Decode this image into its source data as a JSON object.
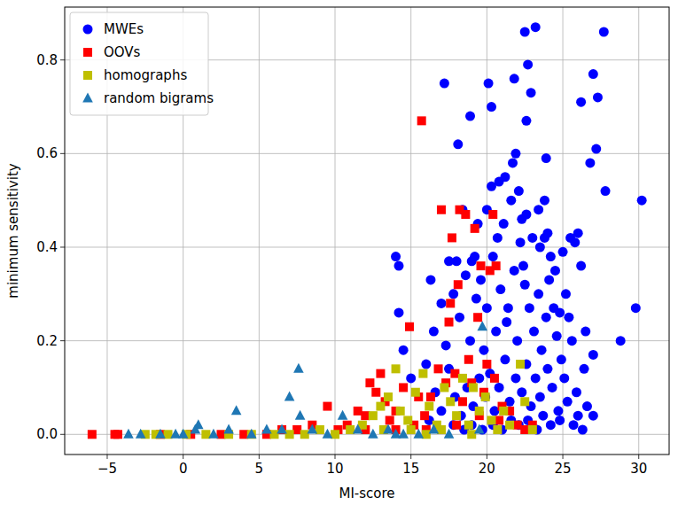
{
  "chart_data": {
    "type": "scatter",
    "x_label": "MI-score",
    "y_label": "minimum sensitivity",
    "xlim": [
      -7.8,
      32.0
    ],
    "ylim": [
      -0.043,
      0.913
    ],
    "xticks": [
      {
        "value": -5,
        "label": "−5"
      },
      0,
      5,
      10,
      15,
      20,
      25,
      30
    ],
    "yticks": [
      {
        "value": 0,
        "label": "0.0"
      },
      {
        "value": 0.2,
        "label": "0.2"
      },
      {
        "value": 0.4,
        "label": "0.4"
      },
      {
        "value": 0.6,
        "label": "0.6"
      },
      {
        "value": 0.8,
        "label": "0.8"
      }
    ],
    "grid": true,
    "legend": "upper left",
    "series": [
      {
        "name": "MWEs",
        "color": "#0000ff",
        "marker": "circle",
        "x": [
          22.5,
          23.2,
          27.7,
          22.7,
          21.8,
          27.0,
          17.2,
          20.1,
          22.9,
          20.3,
          26.2,
          27.3,
          18.9,
          22.6,
          27.2,
          18.1,
          26.8,
          21.9,
          27.8,
          23.9,
          30.2,
          14.0,
          14.2,
          16.3,
          17.5,
          18.0,
          19.2,
          20.3,
          20.8,
          21.2,
          21.7,
          21.6,
          22.1,
          22.3,
          22.6,
          23.0,
          23.5,
          23.8,
          24.0,
          24.2,
          23.8,
          25.5,
          26.0,
          25.8,
          25.2,
          25.4,
          26.5,
          29.8,
          28.8,
          27.0,
          26.6,
          27.0,
          26.0,
          14.2,
          14.5,
          15.0,
          16.0,
          16.5,
          17.0,
          17.8,
          18.2,
          18.6,
          18.9,
          19.3,
          19.6,
          19.8,
          20.0,
          20.4,
          20.6,
          20.9,
          21.1,
          21.4,
          21.8,
          22.0,
          22.2,
          22.5,
          22.8,
          23.1,
          23.4,
          23.6,
          23.9,
          24.1,
          24.4,
          24.6,
          24.9,
          25.1,
          24.3,
          24.0,
          23.5,
          23.2,
          22.9,
          22.6,
          22.3,
          21.9,
          21.5,
          21.2,
          20.8,
          20.5,
          20.2,
          19.9,
          19.5,
          19.1,
          18.7,
          18.3,
          17.9,
          17.5,
          17.0,
          16.6,
          16.2,
          24.7,
          25.3,
          25.7,
          26.3,
          25.9,
          24.8,
          24.2,
          23.7,
          23.3,
          22.7,
          22.1,
          21.6,
          21.0,
          20.4,
          19.7,
          19.0,
          18.5,
          17.8,
          21.3,
          22.4,
          20.7,
          19.4,
          18.4,
          20.0,
          23.4,
          24.5,
          26.2,
          25.6,
          24.8,
          26.4,
          25.0,
          19.0,
          17.3
        ],
        "values": [
          0.86,
          0.87,
          0.86,
          0.79,
          0.76,
          0.77,
          0.75,
          0.75,
          0.73,
          0.7,
          0.71,
          0.72,
          0.68,
          0.67,
          0.61,
          0.62,
          0.58,
          0.6,
          0.52,
          0.59,
          0.5,
          0.38,
          0.36,
          0.33,
          0.37,
          0.37,
          0.38,
          0.53,
          0.54,
          0.55,
          0.58,
          0.5,
          0.52,
          0.46,
          0.47,
          0.42,
          0.4,
          0.42,
          0.43,
          0.38,
          0.5,
          0.42,
          0.43,
          0.41,
          0.3,
          0.25,
          0.22,
          0.27,
          0.2,
          0.17,
          0.06,
          0.04,
          0.04,
          0.26,
          0.18,
          0.12,
          0.15,
          0.22,
          0.28,
          0.3,
          0.25,
          0.34,
          0.2,
          0.29,
          0.33,
          0.18,
          0.27,
          0.38,
          0.22,
          0.31,
          0.45,
          0.27,
          0.35,
          0.2,
          0.41,
          0.32,
          0.27,
          0.22,
          0.3,
          0.18,
          0.25,
          0.33,
          0.27,
          0.21,
          0.16,
          0.12,
          0.1,
          0.14,
          0.08,
          0.12,
          0.06,
          0.15,
          0.09,
          0.12,
          0.07,
          0.16,
          0.1,
          0.05,
          0.13,
          0.08,
          0.12,
          0.06,
          0.1,
          0.04,
          0.08,
          0.14,
          0.05,
          0.09,
          0.03,
          0.05,
          0.07,
          0.02,
          0.01,
          0.09,
          0.03,
          0.02,
          0.04,
          0.01,
          0.03,
          0.02,
          0.03,
          0.01,
          0.02,
          0.01,
          0.02,
          0.01,
          0.02,
          0.24,
          0.36,
          0.42,
          0.45,
          0.48,
          0.48,
          0.48,
          0.35,
          0.36,
          0.2,
          0.26,
          0.14,
          0.39,
          0.37,
          0.19
        ]
      },
      {
        "name": "OOVs",
        "color": "#ff0000",
        "marker": "square",
        "x": [
          -6.0,
          -4.5,
          -4.3,
          -1.5,
          0.5,
          2.5,
          4.0,
          5.5,
          6.5,
          7.5,
          8.5,
          9.5,
          10.2,
          10.8,
          11.5,
          12.0,
          12.3,
          12.7,
          13.0,
          13.3,
          13.6,
          14.0,
          14.5,
          14.9,
          15.2,
          15.7,
          15.9,
          16.3,
          16.8,
          17.0,
          17.3,
          17.5,
          17.7,
          17.9,
          18.1,
          18.2,
          18.4,
          18.6,
          18.8,
          19.0,
          19.2,
          19.4,
          19.6,
          19.8,
          20.0,
          20.2,
          20.4,
          20.6,
          20.8,
          21.0,
          21.5,
          22.0,
          22.5,
          23.0,
          19.5,
          18.0,
          16.0,
          14.0,
          12.0,
          20.5,
          17.6,
          15.5
        ],
        "values": [
          0,
          0,
          0,
          0,
          0,
          0,
          0,
          0,
          0.01,
          0.01,
          0.02,
          0.06,
          0.01,
          0.02,
          0.05,
          0.04,
          0.11,
          0.09,
          0.13,
          0.07,
          0.03,
          0.05,
          0.1,
          0.23,
          0.02,
          0.67,
          0.04,
          0.08,
          0.14,
          0.48,
          0.11,
          0.24,
          0.42,
          0.13,
          0.32,
          0.48,
          0.07,
          0.47,
          0.16,
          0.11,
          0.44,
          0.25,
          0.36,
          0.09,
          0.15,
          0.35,
          0.47,
          0.36,
          0.03,
          0.06,
          0.05,
          0.02,
          0.01,
          0.02,
          0.04,
          0.02,
          0.01,
          0.01,
          0.01,
          0.12,
          0.28,
          0.08
        ]
      },
      {
        "name": "homographs",
        "color": "#bfbf00",
        "marker": "square",
        "x": [
          -2.5,
          -1.8,
          -1.0,
          0.2,
          1.5,
          3.0,
          4.5,
          6.0,
          7.0,
          8.0,
          9.0,
          10.0,
          11.0,
          11.8,
          12.5,
          13.0,
          13.5,
          14.0,
          14.3,
          14.8,
          15.3,
          15.8,
          16.2,
          16.7,
          17.2,
          17.6,
          18.0,
          18.4,
          18.8,
          19.1,
          19.5,
          19.9,
          20.3,
          20.7,
          21.1,
          21.5,
          22.2,
          22.5,
          23.0,
          15.0,
          13.2,
          17.0,
          19.0,
          16.0
        ],
        "values": [
          0,
          0,
          0,
          0,
          0,
          0,
          0,
          0,
          0,
          0,
          0.01,
          0,
          0.01,
          0.02,
          0.04,
          0.06,
          0.08,
          0.14,
          0.05,
          0.03,
          0.09,
          0.13,
          0.06,
          0.02,
          0.1,
          0.07,
          0.04,
          0.12,
          0.02,
          0.1,
          0.05,
          0.08,
          0.03,
          0.01,
          0.05,
          0.02,
          0.15,
          0.07,
          0.01,
          0.01,
          0.01,
          0.01,
          0,
          0
        ]
      },
      {
        "name": "random bigrams",
        "color": "#1f77b4",
        "marker": "triangle",
        "x": [
          -3.6,
          -2.8,
          -1.5,
          -0.5,
          0.0,
          0.8,
          1.0,
          2.0,
          3.0,
          3.5,
          4.5,
          5.5,
          6.5,
          7.0,
          7.6,
          7.7,
          8.5,
          9.5,
          10.5,
          11.5,
          12.5,
          13.5,
          14.5,
          15.5,
          16.5,
          17.5,
          19.7,
          19.5,
          14.0
        ],
        "values": [
          0,
          0,
          0,
          0,
          0,
          0.01,
          0.02,
          0,
          0.01,
          0.05,
          0,
          0.01,
          0.01,
          0.08,
          0.14,
          0.04,
          0.01,
          0,
          0.04,
          0.01,
          0,
          0.01,
          0,
          0,
          0.01,
          0,
          0.23,
          0.01,
          0
        ]
      }
    ]
  }
}
